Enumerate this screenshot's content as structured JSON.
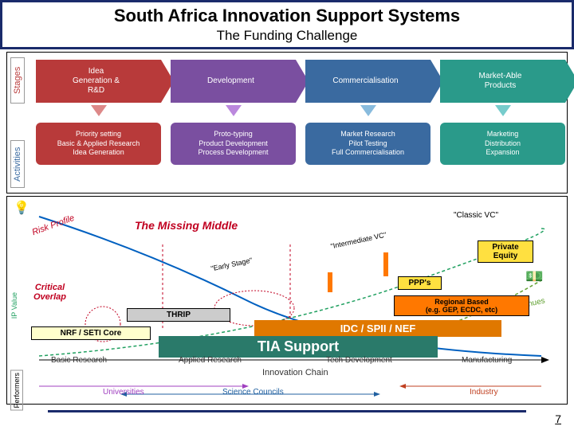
{
  "header": {
    "title": "South Africa Innovation Support Systems",
    "subtitle": "The Funding Challenge"
  },
  "topDiagram": {
    "sideLabels": {
      "stages": "Stages",
      "activities": "Activities"
    },
    "stages": [
      {
        "label": "Idea\nGeneration &\nR&D",
        "color": "#b83a3a",
        "arrow": "#d88"
      },
      {
        "label": "Development",
        "color": "#7a4fa0",
        "arrow": "#b8d"
      },
      {
        "label": "Commercialisation",
        "color": "#3a6aa0",
        "arrow": "#8bd"
      },
      {
        "label": "Market-Able\nProducts",
        "color": "#2a9a8a",
        "arrow": "#7cc"
      }
    ],
    "activities": [
      {
        "lines": "Priority setting\nBasic & Applied Research\nIdea Generation",
        "color": "#b83a3a"
      },
      {
        "lines": "Proto-typing\nProduct Development\nProcess Development",
        "color": "#7a4fa0"
      },
      {
        "lines": "Market Research\nPilot Testing\nFull Commercialisation",
        "color": "#3a6aa0"
      },
      {
        "lines": "Marketing\nDistribution\nExpansion",
        "color": "#2a9a8a"
      }
    ]
  },
  "bottomDiagram": {
    "riskLabel": "Risk Profile",
    "missingMiddle": "The Missing Middle",
    "criticalOverlap": "Critical\nOverlap",
    "thrip": "THRIP",
    "nrfSeti": "NRF / SETI Core",
    "tia": "TIA Support",
    "idc": "IDC / SPII / NEF",
    "regional": "Regional Based\n(e.g. GEP, ECDC, etc)",
    "ppp": "PPP's",
    "privEquity": "Private\nEquity",
    "classicVC": "\"Classic VC\"",
    "intermedVC": "\"Intermediate VC\"",
    "earlyStage": "\"Early Stage\"",
    "ipValue": "IP Value",
    "revenues": "Revenues",
    "innovChain": "Innovation Chain",
    "stages": [
      "Basic Research",
      "Applied Research",
      "Tech Development",
      "Manufacturing"
    ],
    "performers": {
      "label": "Performers",
      "universities": "Universities",
      "councils": "Science Councils",
      "industry": "Industry"
    },
    "colors": {
      "missingMiddle": "#c00020",
      "critical": "#c00020",
      "tiaBand": "#2a7a6a",
      "idcBand": "#e07800",
      "regional": "#ff7800",
      "ppp": "#ffe040",
      "privEquity": "#ffe040",
      "thrip": "#cccccc",
      "nrfSeti": "#ffffcc",
      "curve": "#0060c0",
      "ipCurve": "#20a060",
      "revCurve": "#60a030"
    }
  },
  "pageNumber": "7"
}
